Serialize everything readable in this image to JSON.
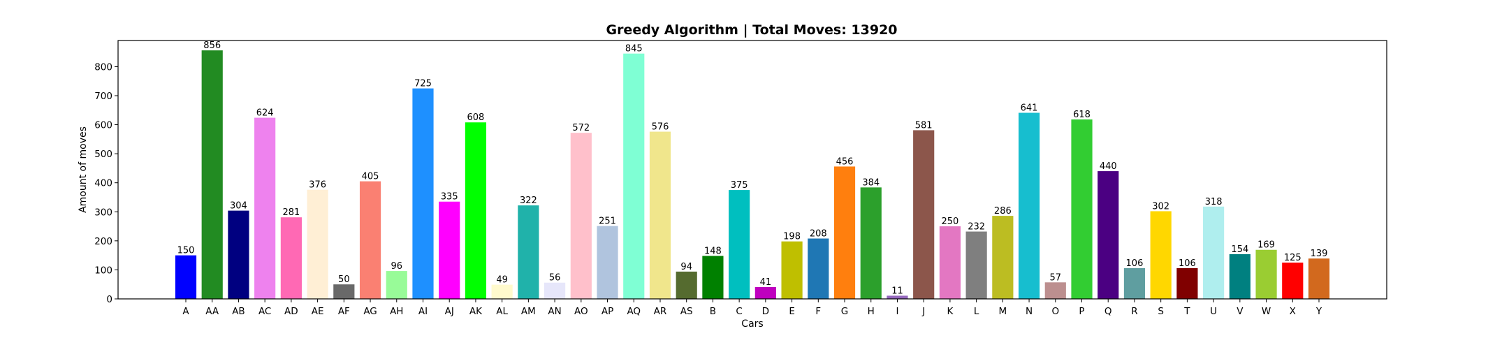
{
  "chart_data": {
    "type": "bar",
    "title": "Greedy Algorithm | Total Moves: 13920",
    "xlabel": "Cars",
    "ylabel": "Amount of moves",
    "ylim": [
      0,
      890
    ],
    "yticks": [
      0,
      100,
      200,
      300,
      400,
      500,
      600,
      700,
      800
    ],
    "grid": false,
    "categories": [
      "A",
      "AA",
      "AB",
      "AC",
      "AD",
      "AE",
      "AF",
      "AG",
      "AH",
      "AI",
      "AJ",
      "AK",
      "AL",
      "AM",
      "AN",
      "AO",
      "AP",
      "AQ",
      "AR",
      "AS",
      "B",
      "C",
      "D",
      "E",
      "F",
      "G",
      "H",
      "I",
      "J",
      "K",
      "L",
      "M",
      "N",
      "O",
      "P",
      "Q",
      "R",
      "S",
      "T",
      "U",
      "V",
      "W",
      "X",
      "Y"
    ],
    "values": [
      150,
      856,
      304,
      624,
      281,
      376,
      50,
      405,
      96,
      725,
      335,
      608,
      49,
      322,
      56,
      572,
      251,
      845,
      576,
      94,
      148,
      375,
      41,
      198,
      208,
      456,
      384,
      11,
      581,
      250,
      232,
      286,
      641,
      57,
      618,
      440,
      106,
      302,
      106,
      318,
      154,
      169,
      125,
      139
    ],
    "colors": [
      "#0000ff",
      "#228b22",
      "#000080",
      "#ee82ee",
      "#ff69b4",
      "#ffefd5",
      "#696969",
      "#fa8072",
      "#98fb98",
      "#1e90ff",
      "#ff00ff",
      "#00ff00",
      "#fffacd",
      "#20b2aa",
      "#e6e6fa",
      "#ffc0cb",
      "#b0c4de",
      "#7fffd4",
      "#f0e68c",
      "#556b2f",
      "#008000",
      "#00bfbf",
      "#bf00bf",
      "#bfbf00",
      "#1f77b4",
      "#ff7f0e",
      "#2ca02c",
      "#9467bd",
      "#8c564b",
      "#e377c2",
      "#7f7f7f",
      "#bcbd22",
      "#17becf",
      "#bc8f8f",
      "#32cd32",
      "#4b0082",
      "#5f9ea0",
      "#ffd700",
      "#800000",
      "#afeeee",
      "#008080",
      "#9acd32",
      "#ff0000",
      "#d2691e"
    ]
  }
}
